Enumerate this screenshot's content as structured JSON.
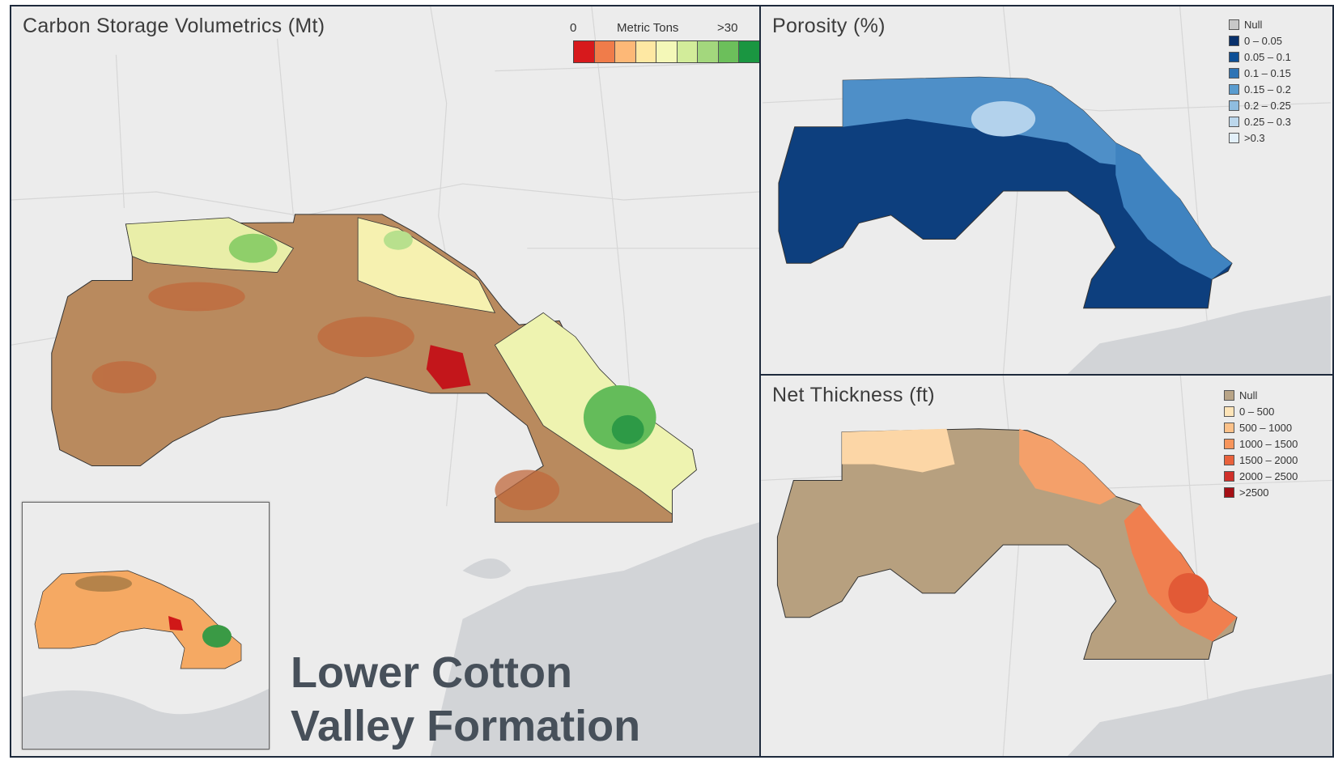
{
  "carbon_panel": {
    "title": "Carbon Storage Volumetrics (Mt)",
    "legend": {
      "min_label": "0",
      "unit_label": "Metric Tons",
      "max_label": ">30",
      "colors": [
        "#d7191c",
        "#f07c4a",
        "#fdb877",
        "#fee8a3",
        "#f4f8b8",
        "#d2ec9a",
        "#a3d77d",
        "#6cbf5b",
        "#1a9641"
      ]
    }
  },
  "porosity_panel": {
    "title": "Porosity (%)",
    "legend": [
      {
        "label": "Null",
        "color": "#c8c8c8"
      },
      {
        "label": "0 – 0.05",
        "color": "#08306b"
      },
      {
        "label": "0.05 – 0.1",
        "color": "#0d4f96"
      },
      {
        "label": "0.1 – 0.15",
        "color": "#2f74b5"
      },
      {
        "label": "0.15 – 0.2",
        "color": "#5a9ccf"
      },
      {
        "label": "0.2 – 0.25",
        "color": "#8fbde0"
      },
      {
        "label": "0.25 – 0.3",
        "color": "#bcd7ec"
      },
      {
        "label": ">0.3",
        "color": "#e3f0fa"
      }
    ]
  },
  "thickness_panel": {
    "title": "Net Thickness (ft)",
    "legend": [
      {
        "label": "Null",
        "color": "#b8a487"
      },
      {
        "label": "0 – 500",
        "color": "#fde4b8"
      },
      {
        "label": "500 – 1000",
        "color": "#fcc189"
      },
      {
        "label": "1000 – 1500",
        "color": "#f7955c"
      },
      {
        "label": "1500 – 2000",
        "color": "#e9613b"
      },
      {
        "label": "2000 – 2500",
        "color": "#d0302a"
      },
      {
        "label": ">2500",
        "color": "#a50f15"
      }
    ]
  },
  "formation_name": {
    "line1": "Lower Cotton",
    "line2": "Valley Formation"
  }
}
